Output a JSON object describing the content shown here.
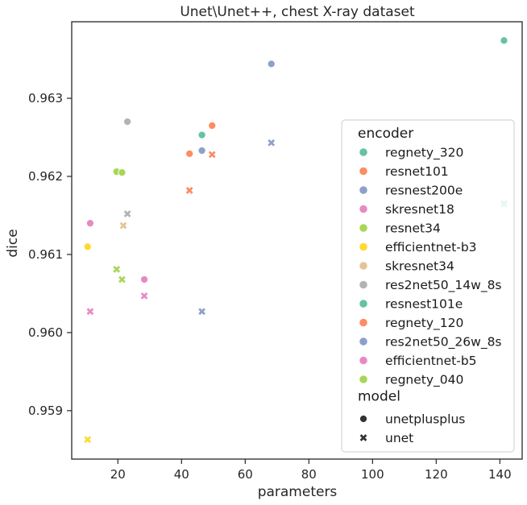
{
  "chart_data": {
    "type": "scatter",
    "title": "Unet\\Unet++, chest X-ray dataset",
    "xlabel": "parameters",
    "ylabel": "dice",
    "xlim": [
      5.5,
      147
    ],
    "ylim": [
      0.95838,
      0.96398
    ],
    "xticks": [
      20,
      40,
      60,
      80,
      100,
      120,
      140
    ],
    "yticks": [
      0.959,
      0.96,
      0.961,
      0.962,
      0.963
    ],
    "grid": false,
    "legend": {
      "placement": "right",
      "hue_title": "encoder",
      "style_title": "model",
      "encoders": [
        {
          "name": "regnety_320",
          "color": "#66c2a5"
        },
        {
          "name": "resnet101",
          "color": "#fc8d62"
        },
        {
          "name": "resnest200e",
          "color": "#8da0cb"
        },
        {
          "name": "skresnet18",
          "color": "#e78ac3"
        },
        {
          "name": "resnet34",
          "color": "#a6d854"
        },
        {
          "name": "efficientnet-b3",
          "color": "#ffd92f"
        },
        {
          "name": "skresnet34",
          "color": "#e5c494"
        },
        {
          "name": "res2net50_14w_8s",
          "color": "#b3b3b3"
        },
        {
          "name": "resnest101e",
          "color": "#66c2a5"
        },
        {
          "name": "regnety_120",
          "color": "#fc8d62"
        },
        {
          "name": "res2net50_26w_8s",
          "color": "#8da0cb"
        },
        {
          "name": "efficientnet-b5",
          "color": "#e78ac3"
        },
        {
          "name": "regnety_040",
          "color": "#a6d854"
        }
      ],
      "models": [
        {
          "name": "unetplusplus",
          "marker": "circle"
        },
        {
          "name": "unet",
          "marker": "x"
        }
      ]
    },
    "points": [
      {
        "x": 141.3,
        "y": 0.96374,
        "color": "#66c2a5",
        "marker": "circle"
      },
      {
        "x": 141.3,
        "y": 0.96165,
        "color": "#66c2a5",
        "marker": "x"
      },
      {
        "x": 68.2,
        "y": 0.96344,
        "color": "#8da0cb",
        "marker": "circle"
      },
      {
        "x": 68.2,
        "y": 0.96243,
        "color": "#8da0cb",
        "marker": "x"
      },
      {
        "x": 46.4,
        "y": 0.96233,
        "color": "#8da0cb",
        "marker": "circle"
      },
      {
        "x": 46.4,
        "y": 0.96027,
        "color": "#8da0cb",
        "marker": "x"
      },
      {
        "x": 49.6,
        "y": 0.96265,
        "color": "#fc8d62",
        "marker": "circle"
      },
      {
        "x": 49.6,
        "y": 0.96228,
        "color": "#fc8d62",
        "marker": "x"
      },
      {
        "x": 42.5,
        "y": 0.96229,
        "color": "#fc8d62",
        "marker": "circle"
      },
      {
        "x": 42.5,
        "y": 0.96182,
        "color": "#fc8d62",
        "marker": "x"
      },
      {
        "x": 46.4,
        "y": 0.96253,
        "color": "#66c2a5",
        "marker": "circle"
      },
      {
        "x": 23.0,
        "y": 0.9627,
        "color": "#b3b3b3",
        "marker": "circle"
      },
      {
        "x": 23.0,
        "y": 0.96152,
        "color": "#b3b3b3",
        "marker": "x"
      },
      {
        "x": 19.6,
        "y": 0.96206,
        "color": "#a6d854",
        "marker": "circle"
      },
      {
        "x": 19.6,
        "y": 0.96081,
        "color": "#a6d854",
        "marker": "x"
      },
      {
        "x": 21.3,
        "y": 0.96205,
        "color": "#a6d854",
        "marker": "circle"
      },
      {
        "x": 21.3,
        "y": 0.96068,
        "color": "#a6d854",
        "marker": "x"
      },
      {
        "x": 21.7,
        "y": 0.96137,
        "color": "#e5c494",
        "marker": "x"
      },
      {
        "x": 11.3,
        "y": 0.9614,
        "color": "#e78ac3",
        "marker": "circle"
      },
      {
        "x": 11.3,
        "y": 0.96027,
        "color": "#e78ac3",
        "marker": "x"
      },
      {
        "x": 28.3,
        "y": 0.96068,
        "color": "#e78ac3",
        "marker": "circle"
      },
      {
        "x": 28.3,
        "y": 0.96047,
        "color": "#e78ac3",
        "marker": "x"
      },
      {
        "x": 10.5,
        "y": 0.9611,
        "color": "#ffd92f",
        "marker": "circle"
      },
      {
        "x": 10.5,
        "y": 0.95863,
        "color": "#ffd92f",
        "marker": "x"
      }
    ]
  }
}
